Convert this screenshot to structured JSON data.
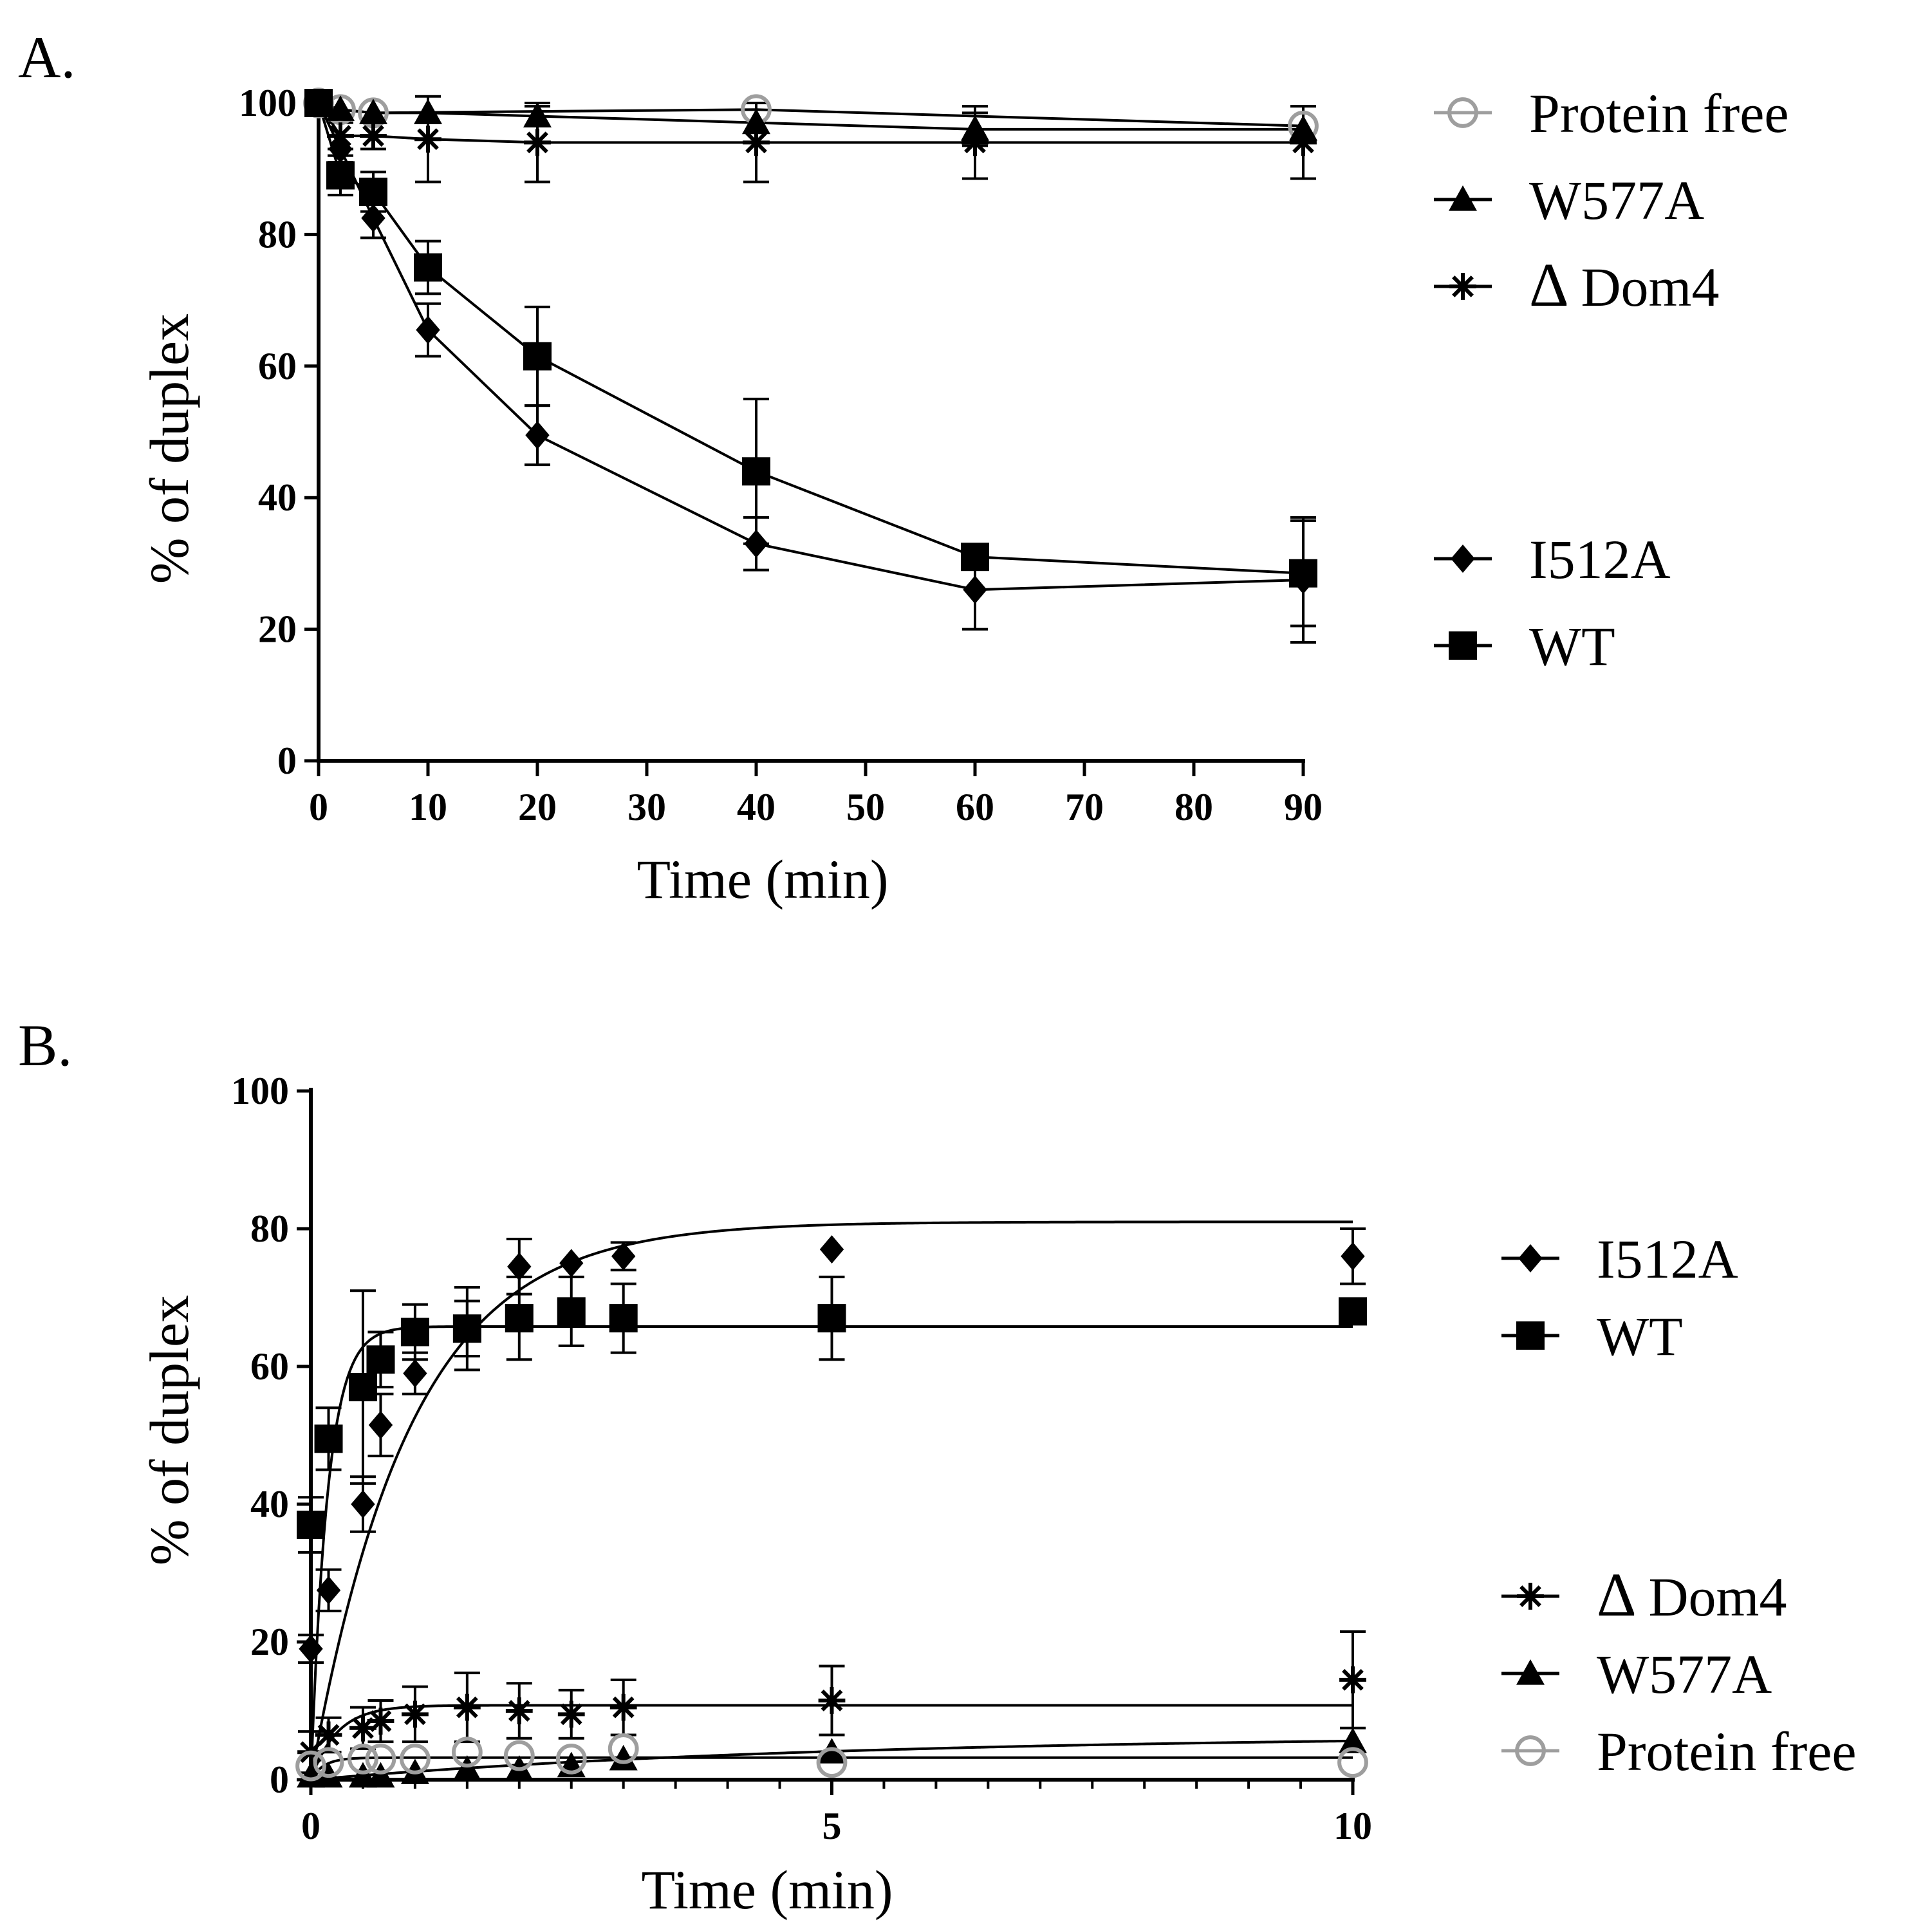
{
  "chart_data": [
    {
      "panel": "A.",
      "type": "line",
      "xlabel": "Time (min)",
      "ylabel": "% of duplex",
      "xlim": [
        0,
        90
      ],
      "ylim": [
        0,
        100
      ],
      "xticks": [
        0,
        10,
        20,
        30,
        40,
        50,
        60,
        70,
        80,
        90
      ],
      "yticks": [
        0,
        20,
        40,
        60,
        80,
        100
      ],
      "legend_groups": [
        [
          "Protein free",
          "W577A",
          "Dom4"
        ],
        [
          "I512A",
          "WT"
        ]
      ],
      "series": [
        {
          "name": "Protein free",
          "marker": "open-circle",
          "color": "#9e9e9e",
          "x": [
            0,
            2,
            5,
            40,
            90
          ],
          "y": [
            100,
            99,
            98.5,
            99,
            96.5
          ],
          "err": [
            0,
            0,
            0,
            0,
            0
          ]
        },
        {
          "name": "W577A",
          "marker": "triangle",
          "color": "#000000",
          "x": [
            0,
            2,
            5,
            10,
            20,
            40,
            60,
            90
          ],
          "y": [
            100,
            99,
            98.5,
            98.5,
            98,
            97,
            96,
            96
          ],
          "err": [
            0,
            0,
            0,
            0,
            1.5,
            0,
            2.5,
            0
          ]
        },
        {
          "name": "Dom4",
          "legend_prefix": "Δ",
          "marker": "asterisk",
          "color": "#000000",
          "x": [
            0,
            2,
            5,
            10,
            20,
            40,
            60,
            90
          ],
          "y": [
            100,
            95,
            95,
            94.5,
            94,
            94,
            94,
            94
          ],
          "err": [
            0,
            2,
            2,
            6.5,
            6,
            6,
            5.5,
            5.5
          ]
        },
        {
          "name": "I512A",
          "marker": "diamond",
          "color": "#000000",
          "x": [
            0,
            2,
            5,
            10,
            20,
            40,
            60,
            90
          ],
          "y": [
            100,
            93,
            82.5,
            65.5,
            49.5,
            33,
            26,
            27.5
          ],
          "err": [
            0,
            2,
            3,
            4,
            4.5,
            4,
            6,
            9.5
          ]
        },
        {
          "name": "WT",
          "marker": "square",
          "color": "#000000",
          "x": [
            0,
            2,
            5,
            10,
            20,
            40,
            60,
            90
          ],
          "y": [
            100,
            89,
            86.5,
            75,
            61.5,
            44,
            31,
            28.5
          ],
          "err": [
            0,
            3,
            3,
            4,
            7.5,
            11,
            0,
            8
          ]
        }
      ]
    },
    {
      "panel": "B.",
      "type": "scatter",
      "xlabel": "Time (min)",
      "ylabel": "% of duplex",
      "xlim": [
        0,
        10
      ],
      "ylim": [
        0,
        100
      ],
      "xticks": [
        0,
        5,
        10
      ],
      "yticks": [
        0,
        20,
        40,
        60,
        80,
        100
      ],
      "legend_groups": [
        [
          "I512A",
          "WT"
        ],
        [
          "Dom4",
          "W577A",
          "Protein free"
        ]
      ],
      "series": [
        {
          "name": "I512A",
          "marker": "diamond",
          "color": "#000000",
          "x": [
            0,
            0.17,
            0.5,
            0.67,
            1,
            1.5,
            2,
            2.5,
            3,
            5,
            10
          ],
          "y": [
            19,
            27.5,
            40,
            51.5,
            59,
            65.5,
            74.5,
            75,
            76,
            77,
            76
          ],
          "err": [
            2,
            3,
            4,
            4.5,
            3,
            4,
            4,
            0,
            2,
            0,
            4
          ],
          "fit": {
            "y0": 0,
            "ymax": 81,
            "k": 1.05
          }
        },
        {
          "name": "WT",
          "marker": "square",
          "color": "#000000",
          "x": [
            0,
            0.17,
            0.5,
            0.67,
            1,
            1.5,
            2,
            2.5,
            3,
            5,
            10
          ],
          "y": [
            37,
            49.5,
            57,
            61,
            65,
            65.5,
            67,
            68,
            67,
            67,
            68
          ],
          "err": [
            4,
            4.5,
            14,
            4,
            4,
            6,
            6,
            5,
            5,
            6,
            0
          ],
          "fit": {
            "y0": 0,
            "ymax": 65.8,
            "k": 6.2
          }
        },
        {
          "name": "Dom4",
          "legend_prefix": "Δ",
          "marker": "asterisk",
          "color": "#000000",
          "x": [
            0,
            0.17,
            0.5,
            0.67,
            1,
            1.5,
            2,
            2.5,
            3,
            5,
            10
          ],
          "y": [
            4,
            6.5,
            7.5,
            8.5,
            9.5,
            10.5,
            10,
            9.5,
            10.5,
            11.5,
            14.5
          ],
          "err": [
            3,
            2.5,
            3,
            3,
            4,
            5,
            4,
            3.5,
            4,
            5,
            7
          ],
          "fit": {
            "y0": 0,
            "ymax": 10.8,
            "k": 4
          }
        },
        {
          "name": "W577A",
          "marker": "triangle",
          "color": "#000000",
          "x": [
            0,
            0.17,
            0.5,
            0.67,
            1,
            1.5,
            2,
            2.5,
            3,
            5,
            10
          ],
          "y": [
            0.5,
            0.5,
            0.5,
            0.5,
            1,
            1.5,
            1.5,
            2,
            3,
            4,
            5.5
          ],
          "err": [
            0,
            0,
            0,
            0,
            0,
            0,
            0,
            0,
            0,
            0,
            0
          ],
          "fit": {
            "y0": 0,
            "ymax": 6.5,
            "k": 0.2
          }
        },
        {
          "name": "Protein free",
          "marker": "open-circle",
          "color": "#9e9e9e",
          "x": [
            0,
            0.17,
            0.5,
            0.67,
            1,
            1.5,
            2,
            2.5,
            3,
            5,
            10
          ],
          "y": [
            2,
            2.5,
            3,
            3,
            3,
            4,
            3.5,
            3,
            4.5,
            2.5,
            2.5
          ],
          "err": [
            0,
            0,
            0,
            0,
            0,
            0,
            0,
            0,
            0,
            0,
            0
          ],
          "fit": {
            "y0": 0,
            "ymax": 3.2,
            "k": 8
          }
        }
      ]
    }
  ]
}
